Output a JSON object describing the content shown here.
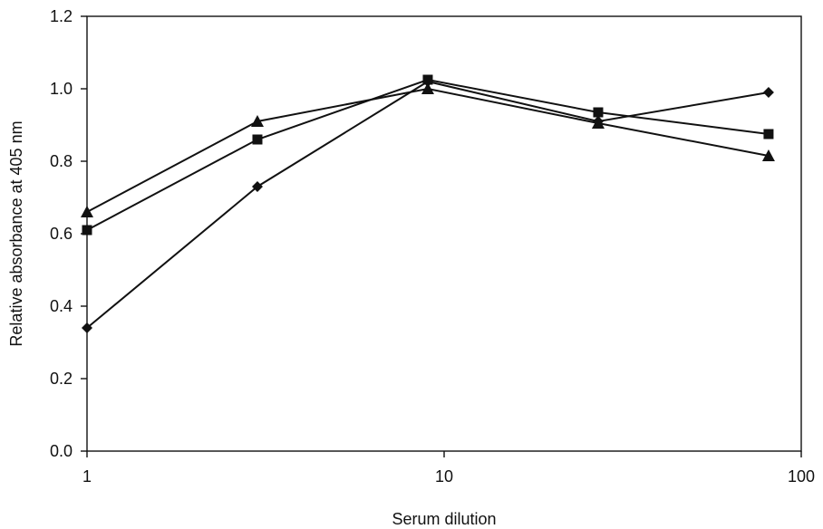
{
  "chart_data": {
    "type": "line",
    "title": "",
    "xlabel": "Serum dilution",
    "ylabel": "Relative absorbance at 405 nm",
    "xscale": "log",
    "xlim": [
      1,
      100
    ],
    "ylim": [
      0,
      1.2
    ],
    "xticks": [
      1,
      10,
      100
    ],
    "xtick_labels": [
      "1",
      "10",
      "100"
    ],
    "yticks": [
      0,
      0.2,
      0.4,
      0.6,
      0.8,
      1.0,
      1.2
    ],
    "ytick_labels": [
      "0.0",
      "0.2",
      "0.4",
      "0.6",
      "0.8",
      "1.0",
      "1.2"
    ],
    "grid": false,
    "legend": "none",
    "series": [
      {
        "marker": "diamond",
        "x": [
          1,
          3,
          9,
          27,
          81
        ],
        "y": [
          0.34,
          0.73,
          1.02,
          0.91,
          0.99
        ]
      },
      {
        "marker": "square",
        "x": [
          1,
          3,
          9,
          27,
          81
        ],
        "y": [
          0.61,
          0.86,
          1.025,
          0.935,
          0.875
        ]
      },
      {
        "marker": "triangle",
        "x": [
          1,
          3,
          9,
          27,
          81
        ],
        "y": [
          0.66,
          0.91,
          1.0,
          0.905,
          0.815
        ]
      }
    ]
  }
}
